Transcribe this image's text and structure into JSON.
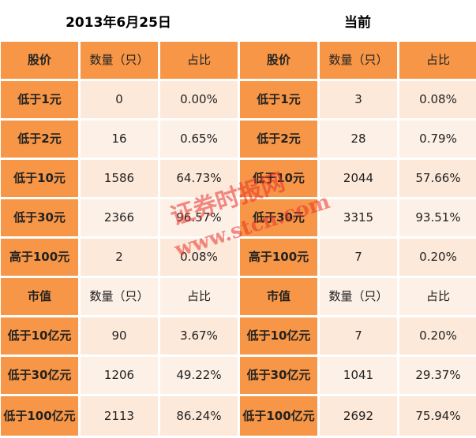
{
  "titles": {
    "left": "2013年6月25日",
    "right": "当前"
  },
  "headers": {
    "price": [
      "股价",
      "数量（只）",
      "占比",
      "股价",
      "数量（只）",
      "占比"
    ],
    "cap": [
      "市值",
      "数量（只）",
      "占比",
      "市值",
      "数量（只）",
      "占比"
    ]
  },
  "price_rows": [
    [
      "低于1元",
      "0",
      "0.00%",
      "低于1元",
      "3",
      "0.08%"
    ],
    [
      "低于2元",
      "16",
      "0.65%",
      "低于2元",
      "28",
      "0.79%"
    ],
    [
      "低于10元",
      "1586",
      "64.73%",
      "低于10元",
      "2044",
      "57.66%"
    ],
    [
      "低于30元",
      "2366",
      "96.57%",
      "低于30元",
      "3315",
      "93.51%"
    ],
    [
      "高于100元",
      "2",
      "0.08%",
      "高于100元",
      "7",
      "0.20%"
    ]
  ],
  "cap_rows": [
    [
      "低于10亿元",
      "90",
      "3.67%",
      "低于10亿元",
      "7",
      "0.20%"
    ],
    [
      "低于30亿元",
      "1206",
      "49.22%",
      "低于30亿元",
      "1041",
      "29.37%"
    ],
    [
      "低于100亿元",
      "2113",
      "86.24%",
      "低于100亿元",
      "2692",
      "75.94%"
    ]
  ],
  "watermark": {
    "line1": "证券时报网",
    "line2": "www.stcn.com",
    "color": "#e8322c"
  },
  "colors": {
    "header": "#f79646",
    "cell_light": "#fde9d9",
    "cell_lighter": "#fdf0e6"
  }
}
